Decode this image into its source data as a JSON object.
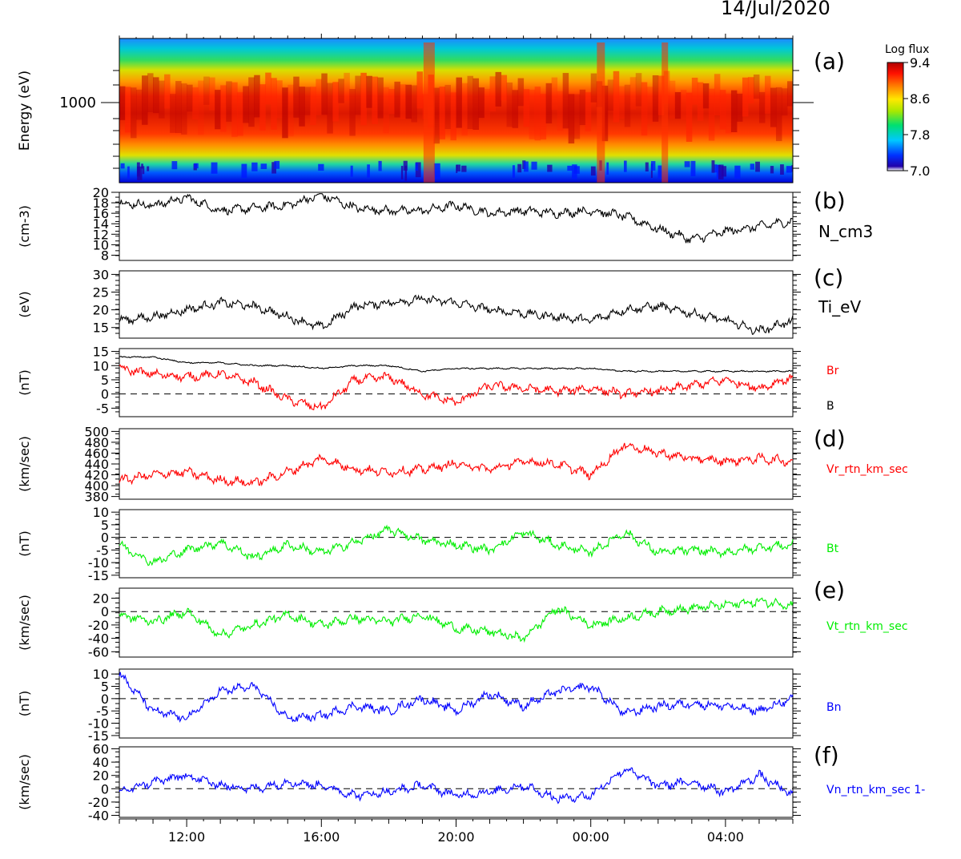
{
  "figure": {
    "date_label": "14/Jul/2020",
    "colorbar": {
      "title": "Log flux",
      "ticks": [
        "9.4",
        "8.6",
        "7.8",
        "7.0"
      ],
      "range": [
        7.0,
        9.4
      ]
    },
    "time_axis": {
      "start_hour": 10.0,
      "end_hour": 30.0,
      "tick_labels": [
        "12:00",
        "16:00",
        "20:00",
        "00:00",
        "04:00"
      ]
    },
    "panel_letters": [
      "(a)",
      "(b)",
      "(c)",
      "(d)",
      "(e)",
      "(f)"
    ]
  },
  "chart_data": [
    {
      "id": "a",
      "type": "heatmap",
      "ylabel": "Energy (eV)",
      "ytick_labels": [
        "1000"
      ],
      "colorbar_title": "Log flux",
      "z_range": [
        7.0,
        9.4
      ],
      "note": "ion energy spectrogram; peak flux near 1000 eV"
    },
    {
      "id": "b",
      "type": "line",
      "ylabel": "(cm-3)",
      "ylim": [
        7,
        20
      ],
      "ytick_labels": [
        "20",
        "18",
        "16",
        "14",
        "12",
        "10",
        "8"
      ],
      "series": [
        {
          "name": "N_cm3",
          "color": "#000000",
          "x": [
            10,
            11,
            12,
            13,
            14,
            15,
            16,
            17,
            18,
            19,
            20,
            21,
            22,
            23,
            24,
            25,
            26,
            27,
            28,
            29,
            30
          ],
          "values": [
            18,
            17.5,
            19,
            16.5,
            17,
            17.5,
            19.5,
            17,
            16.5,
            16.5,
            17.5,
            16,
            16.5,
            16,
            16.5,
            15.5,
            13,
            11,
            12.5,
            13.5,
            14.5
          ]
        }
      ]
    },
    {
      "id": "c",
      "type": "line",
      "ylabel": "(eV)",
      "ylim": [
        12,
        31
      ],
      "ytick_labels": [
        "30",
        "25",
        "20",
        "15"
      ],
      "series": [
        {
          "name": "Ti_eV",
          "color": "#000000",
          "x": [
            10,
            11,
            12,
            13,
            14,
            15,
            16,
            17,
            18,
            19,
            20,
            21,
            22,
            23,
            24,
            25,
            26,
            27,
            28,
            29,
            30
          ],
          "values": [
            17,
            18,
            20,
            22,
            21,
            18,
            15,
            21,
            22,
            23,
            22,
            20,
            19,
            18,
            17,
            20,
            21,
            19,
            17,
            14,
            17
          ]
        }
      ]
    },
    {
      "id": "br",
      "type": "line",
      "ylabel": "(nT)",
      "ylim": [
        -8,
        16
      ],
      "ytick_labels": [
        "15",
        "10",
        "5",
        "0",
        "-5"
      ],
      "series": [
        {
          "name": "Br",
          "color": "#ff0000",
          "x": [
            10,
            11,
            12,
            13,
            14,
            15,
            16,
            17,
            18,
            19,
            20,
            21,
            22,
            23,
            24,
            25,
            26,
            27,
            28,
            29,
            30
          ],
          "values": [
            9,
            7,
            6,
            7,
            4,
            -2,
            -5,
            5,
            6,
            0,
            -3,
            3,
            2,
            1,
            2,
            0,
            1,
            3,
            5,
            2,
            6
          ]
        },
        {
          "name": "B",
          "color": "#000000",
          "x": [
            10,
            11,
            12,
            13,
            14,
            15,
            16,
            17,
            18,
            19,
            20,
            21,
            22,
            23,
            24,
            25,
            26,
            27,
            28,
            29,
            30
          ],
          "values": [
            13,
            13,
            11,
            11,
            10,
            10,
            9,
            10,
            10,
            8,
            9,
            9,
            9,
            9,
            9,
            8,
            8,
            8,
            8,
            8,
            8
          ]
        }
      ]
    },
    {
      "id": "d",
      "type": "line",
      "ylabel": "(km/sec)",
      "ylim": [
        375,
        505
      ],
      "ytick_labels": [
        "500",
        "480",
        "460",
        "440",
        "420",
        "400",
        "380"
      ],
      "series": [
        {
          "name": "Vr_rtn_km_sec",
          "color": "#ff0000",
          "x": [
            10,
            11,
            12,
            13,
            14,
            15,
            16,
            17,
            18,
            19,
            20,
            21,
            22,
            23,
            24,
            25,
            26,
            27,
            28,
            29,
            30
          ],
          "values": [
            410,
            420,
            425,
            410,
            405,
            425,
            450,
            430,
            425,
            430,
            440,
            430,
            445,
            440,
            420,
            475,
            460,
            450,
            445,
            450,
            445
          ]
        }
      ]
    },
    {
      "id": "bt",
      "type": "line",
      "ylabel": "(nT)",
      "ylim": [
        -16,
        11
      ],
      "ytick_labels": [
        "10",
        "5",
        "0",
        "-5",
        "-10",
        "-15"
      ],
      "series": [
        {
          "name": "Bt",
          "color": "#00ee00",
          "x": [
            10,
            11,
            12,
            13,
            14,
            15,
            16,
            17,
            18,
            19,
            20,
            21,
            22,
            23,
            24,
            25,
            26,
            27,
            28,
            29,
            30
          ],
          "values": [
            -3,
            -10,
            -5,
            -2,
            -8,
            -3,
            -6,
            -2,
            3,
            -1,
            -3,
            -5,
            2,
            -3,
            -6,
            2,
            -6,
            -5,
            -6,
            -4,
            -3
          ]
        }
      ]
    },
    {
      "id": "e",
      "type": "line",
      "ylabel": "(km/sec)",
      "ylim": [
        -68,
        35
      ],
      "ytick_labels": [
        "20",
        "0",
        "-20",
        "-40",
        "-60"
      ],
      "series": [
        {
          "name": "Vt_rtn_km_sec",
          "color": "#00ee00",
          "x": [
            10,
            11,
            12,
            13,
            14,
            15,
            16,
            17,
            18,
            19,
            20,
            21,
            22,
            23,
            24,
            25,
            26,
            27,
            28,
            29,
            30
          ],
          "values": [
            -5,
            -15,
            0,
            -35,
            -20,
            -5,
            -20,
            -10,
            -15,
            -5,
            -25,
            -30,
            -40,
            5,
            -20,
            -10,
            0,
            5,
            10,
            15,
            10
          ]
        }
      ]
    },
    {
      "id": "bn",
      "type": "line",
      "ylabel": "(nT)",
      "ylim": [
        -16,
        12
      ],
      "ytick_labels": [
        "10",
        "5",
        "0",
        "-5",
        "-10",
        "-15"
      ],
      "series": [
        {
          "name": "Bn",
          "color": "#0000ff",
          "x": [
            10,
            11,
            12,
            13,
            14,
            15,
            16,
            17,
            18,
            19,
            20,
            21,
            22,
            23,
            24,
            25,
            26,
            27,
            28,
            29,
            30
          ],
          "values": [
            10,
            -5,
            -8,
            3,
            5,
            -8,
            -7,
            -3,
            -5,
            0,
            -5,
            2,
            -3,
            3,
            5,
            -6,
            -3,
            -2,
            -3,
            -5,
            0
          ]
        }
      ]
    },
    {
      "id": "f",
      "type": "line",
      "ylabel": "(km/sec)",
      "ylim": [
        -43,
        63
      ],
      "ytick_labels": [
        "60",
        "40",
        "20",
        "0",
        "-20",
        "-40"
      ],
      "series": [
        {
          "name": "Vn_rtn_km_sec 1-",
          "color": "#0000ff",
          "x": [
            10,
            11,
            12,
            13,
            14,
            15,
            16,
            17,
            18,
            19,
            20,
            21,
            22,
            23,
            24,
            25,
            26,
            27,
            28,
            29,
            30
          ],
          "values": [
            -5,
            10,
            20,
            5,
            0,
            10,
            5,
            -10,
            -5,
            5,
            -10,
            -5,
            5,
            -15,
            -10,
            30,
            5,
            10,
            -5,
            20,
            -10
          ]
        }
      ]
    }
  ]
}
